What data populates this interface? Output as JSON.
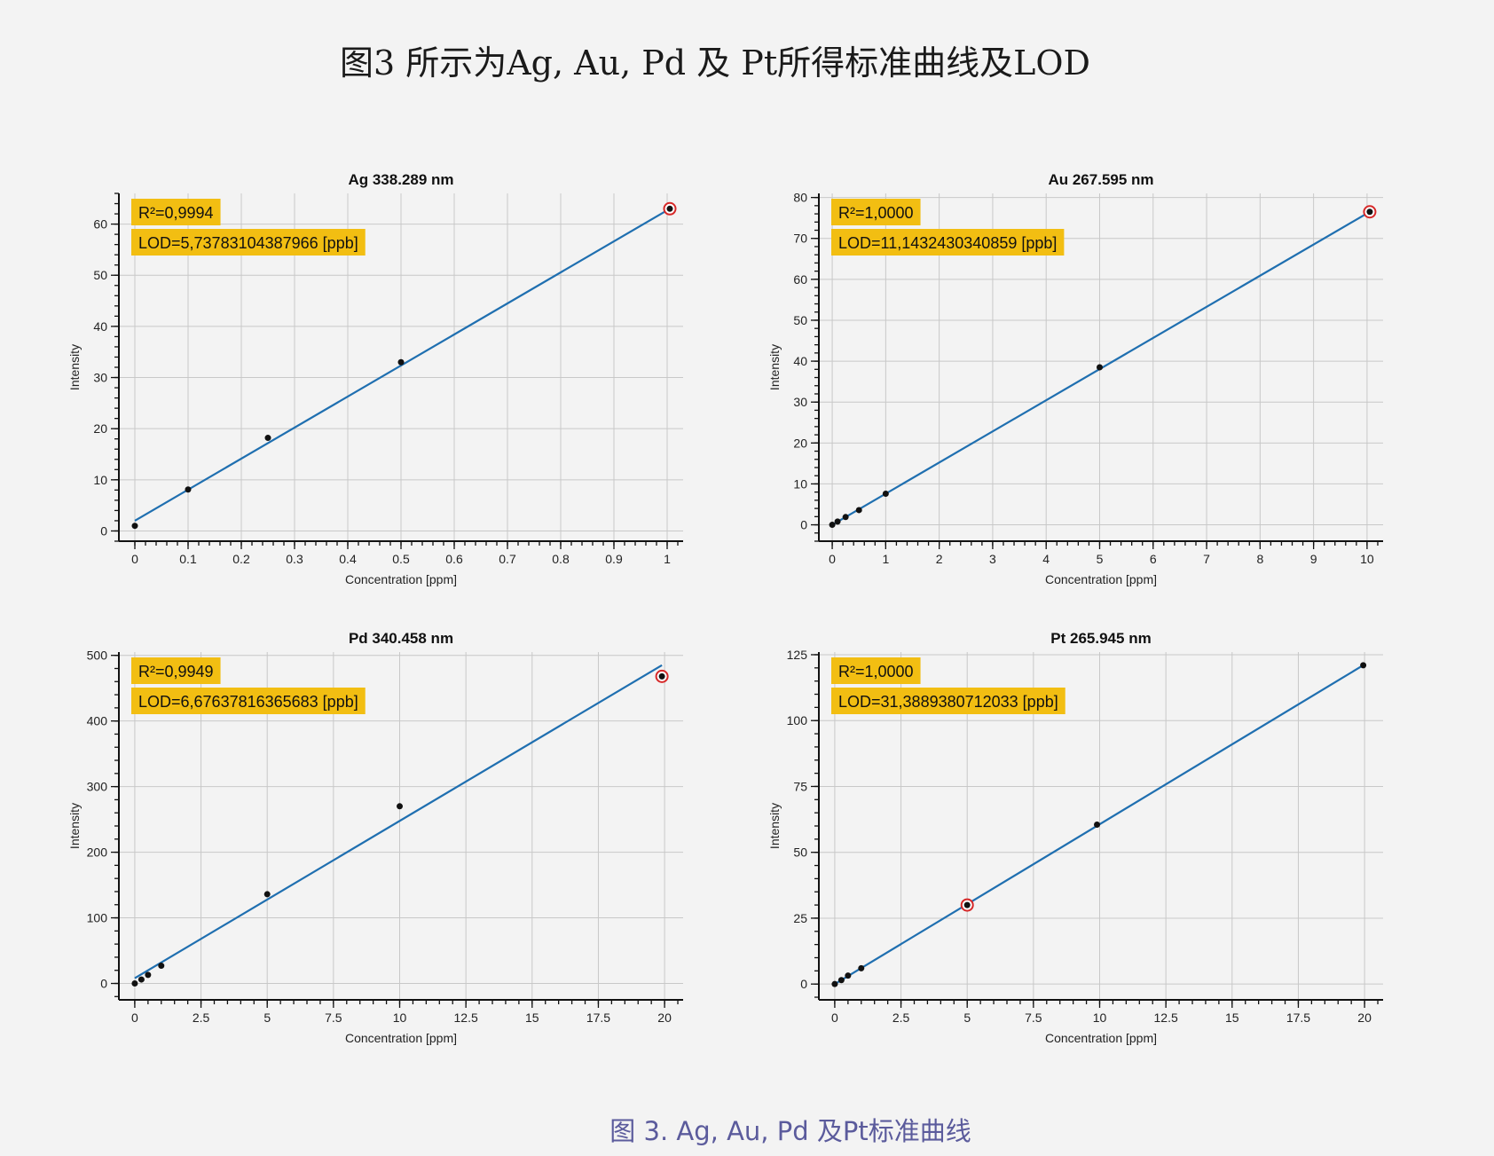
{
  "page": {
    "title": "图3 所示为Ag, Au, Pd 及 Pt所得标准曲线及LOD",
    "caption": "图 3. Ag, Au, Pd 及Pt标准曲线"
  },
  "colors": {
    "fit_line": "#1f6fb0",
    "point": "#111111",
    "highlight_ring": "#d62828",
    "badge_bg": "#f2be12",
    "background": "#f3f3f3"
  },
  "chart_data": [
    {
      "type": "scatter",
      "title": "Ag 338.289 nm",
      "xlabel": "Concentration [ppm]",
      "ylabel": "Intensity",
      "xlim": [
        -0.03,
        1.03
      ],
      "ylim": [
        -2,
        66
      ],
      "xticks": [
        0,
        0.1,
        0.2,
        0.3,
        0.4,
        0.5,
        0.6,
        0.7,
        0.8,
        0.9,
        1
      ],
      "xtick_labels": [
        "0",
        "0.1",
        "0.2",
        "0.3",
        "0.4",
        "0.5",
        "0.6",
        "0.7",
        "0.8",
        "0.9",
        "1"
      ],
      "yticks": [
        0,
        10,
        20,
        30,
        40,
        50,
        60
      ],
      "ytick_labels": [
        "0",
        "10",
        "20",
        "30",
        "40",
        "50",
        "60"
      ],
      "grid": true,
      "points": [
        {
          "x": 0,
          "y": 1.0
        },
        {
          "x": 0.1,
          "y": 8.1
        },
        {
          "x": 0.25,
          "y": 18.2
        },
        {
          "x": 0.5,
          "y": 33.0
        },
        {
          "x": 1.005,
          "y": 63.0
        }
      ],
      "highlighted_points": [
        4
      ],
      "fit_line": {
        "x": [
          0,
          1.005
        ],
        "y": [
          2.0,
          63.0
        ]
      },
      "annotations": [
        "R²=0,9994",
        "LOD=5,73783104387966 [ppb]"
      ]
    },
    {
      "type": "scatter",
      "title": "Au 267.595 nm",
      "xlabel": "Concentration [ppm]",
      "ylabel": "Intensity",
      "xlim": [
        -0.25,
        10.3
      ],
      "ylim": [
        -4,
        81
      ],
      "xticks": [
        0,
        1,
        2,
        3,
        4,
        5,
        6,
        7,
        8,
        9,
        10
      ],
      "xtick_labels": [
        "0",
        "1",
        "2",
        "3",
        "4",
        "5",
        "6",
        "7",
        "8",
        "9",
        "10"
      ],
      "yticks": [
        0,
        10,
        20,
        30,
        40,
        50,
        60,
        70,
        80
      ],
      "ytick_labels": [
        "0",
        "10",
        "20",
        "30",
        "40",
        "50",
        "60",
        "70",
        "80"
      ],
      "grid": true,
      "points": [
        {
          "x": 0,
          "y": 0
        },
        {
          "x": 0.1,
          "y": 0.8
        },
        {
          "x": 0.25,
          "y": 1.9
        },
        {
          "x": 0.5,
          "y": 3.6
        },
        {
          "x": 1,
          "y": 7.6
        },
        {
          "x": 5,
          "y": 38.5
        },
        {
          "x": 10.05,
          "y": 76.5
        }
      ],
      "highlighted_points": [
        6
      ],
      "fit_line": {
        "x": [
          0,
          10.05
        ],
        "y": [
          0,
          76.5
        ]
      },
      "annotations": [
        "R²=1,0000",
        "LOD=11,1432430340859 [ppb]"
      ]
    },
    {
      "type": "scatter",
      "title": "Pd 340.458 nm",
      "xlabel": "Concentration [ppm]",
      "ylabel": "Intensity",
      "xlim": [
        -0.6,
        20.7
      ],
      "ylim": [
        -25,
        505
      ],
      "xticks": [
        0,
        2.5,
        5,
        7.5,
        10,
        12.5,
        15,
        17.5,
        20
      ],
      "xtick_labels": [
        "0",
        "2.5",
        "5",
        "7.5",
        "10",
        "12.5",
        "15",
        "17.5",
        "20"
      ],
      "yticks": [
        0,
        100,
        200,
        300,
        400,
        500
      ],
      "ytick_labels": [
        "0",
        "100",
        "200",
        "300",
        "400",
        "500"
      ],
      "grid": true,
      "points": [
        {
          "x": 0,
          "y": 0
        },
        {
          "x": 0.25,
          "y": 6
        },
        {
          "x": 0.5,
          "y": 13
        },
        {
          "x": 1,
          "y": 27
        },
        {
          "x": 5,
          "y": 136
        },
        {
          "x": 10,
          "y": 270
        },
        {
          "x": 19.9,
          "y": 468
        }
      ],
      "highlighted_points": [
        6
      ],
      "fit_line": {
        "x": [
          0,
          19.9
        ],
        "y": [
          8,
          485
        ]
      },
      "annotations": [
        "R²=0,9949",
        "LOD=6,67637816365683 [ppb]"
      ]
    },
    {
      "type": "scatter",
      "title": "Pt 265.945 nm",
      "xlabel": "Concentration [ppm]",
      "ylabel": "Intensity",
      "xlim": [
        -0.6,
        20.7
      ],
      "ylim": [
        -6,
        126
      ],
      "xticks": [
        0,
        2.5,
        5,
        7.5,
        10,
        12.5,
        15,
        17.5,
        20
      ],
      "xtick_labels": [
        "0",
        "2.5",
        "5",
        "7.5",
        "10",
        "12.5",
        "15",
        "17.5",
        "20"
      ],
      "yticks": [
        0,
        25,
        50,
        75,
        100,
        125
      ],
      "ytick_labels": [
        "0",
        "25",
        "50",
        "75",
        "100",
        "125"
      ],
      "grid": true,
      "points": [
        {
          "x": 0,
          "y": 0
        },
        {
          "x": 0.25,
          "y": 1.5
        },
        {
          "x": 0.5,
          "y": 3.2
        },
        {
          "x": 1,
          "y": 6
        },
        {
          "x": 5,
          "y": 30
        },
        {
          "x": 9.9,
          "y": 60.5
        },
        {
          "x": 19.95,
          "y": 121
        }
      ],
      "highlighted_points": [
        4
      ],
      "fit_line": {
        "x": [
          0,
          19.95
        ],
        "y": [
          0,
          121
        ]
      },
      "annotations": [
        "R²=1,0000",
        "LOD=31,3889380712033 [ppb]"
      ]
    }
  ]
}
